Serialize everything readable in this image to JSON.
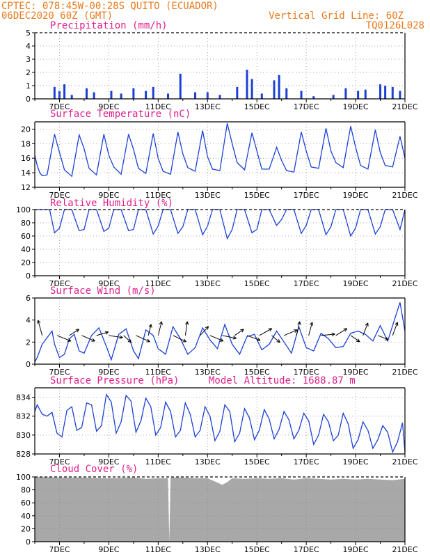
{
  "header": {
    "left_line1": "CPTEC:  078:45W-00:28S  QUITO (ECUADOR)",
    "left_line2": "06DEC2020 60Z (GMT)",
    "right_line1": "Vertical Grid Line: 60Z",
    "right_line2": "TQ0126L028"
  },
  "colors": {
    "header_text": "#e87a1e",
    "panel_title": "#e0208c",
    "series_line": "#1a3fd6",
    "precip_bar": "#1a3fd6",
    "cloud_fill": "#a8a8a8",
    "wind_arrow": "#000000",
    "grid": "#888888"
  },
  "chart_data": [
    {
      "type": "bar",
      "title": "Precipitation (mm/h)",
      "ylim": [
        0,
        5
      ],
      "yticks": [
        "0",
        "1",
        "2",
        "3",
        "4",
        "5"
      ],
      "xticks": [
        "7DEC",
        "9DEC",
        "11DEC",
        "13DEC",
        "15DEC",
        "17DEC",
        "19DEC",
        "21DEC"
      ],
      "x_days": [
        6.8,
        7.0,
        7.2,
        7.5,
        8.1,
        8.4,
        9.1,
        9.5,
        10.0,
        10.5,
        10.8,
        11.4,
        11.9,
        12.5,
        13.0,
        13.5,
        14.2,
        14.6,
        14.8,
        15.2,
        15.7,
        15.9,
        16.2,
        16.8,
        17.3,
        18.1,
        18.6,
        19.1,
        19.4,
        20.0,
        20.2,
        20.5,
        20.8
      ],
      "values": [
        0.9,
        0.6,
        1.1,
        0.3,
        0.8,
        0.5,
        0.6,
        0.4,
        0.8,
        0.6,
        0.9,
        0.4,
        1.9,
        0.5,
        0.5,
        0.3,
        0.9,
        2.2,
        1.5,
        0.4,
        1.4,
        1.8,
        0.8,
        0.6,
        0.2,
        0.3,
        0.8,
        0.6,
        0.7,
        1.1,
        1.0,
        0.9,
        0.6
      ],
      "grid": true
    },
    {
      "type": "line",
      "title": "Surface Temperature (nC)",
      "ylim": [
        12,
        21
      ],
      "yticks": [
        "12",
        "14",
        "16",
        "18",
        "20"
      ],
      "xticks": [
        "7DEC",
        "9DEC",
        "11DEC",
        "13DEC",
        "15DEC",
        "17DEC",
        "19DEC",
        "21DEC"
      ],
      "series": [
        {
          "x_days": [
            6.0,
            6.1,
            6.2,
            6.3,
            6.5,
            6.8,
            7.0,
            7.2,
            7.5,
            7.8,
            8.0,
            8.2,
            8.5,
            8.8,
            9.0,
            9.2,
            9.5,
            9.8,
            10.0,
            10.2,
            10.5,
            10.8,
            11.0,
            11.2,
            11.5,
            11.8,
            12.0,
            12.2,
            12.5,
            12.8,
            13.0,
            13.2,
            13.5,
            13.8,
            14.0,
            14.2,
            14.5,
            14.8,
            15.0,
            15.2,
            15.5,
            15.8,
            16.0,
            16.2,
            16.5,
            16.8,
            17.0,
            17.2,
            17.5,
            17.8,
            18.0,
            18.2,
            18.5,
            18.8,
            19.0,
            19.2,
            19.5,
            19.8,
            20.0,
            20.2,
            20.5,
            20.8,
            21.0
          ],
          "values": [
            16.4,
            15.0,
            14.0,
            13.6,
            13.7,
            19.3,
            16.8,
            14.4,
            13.5,
            19.2,
            17.3,
            14.6,
            13.7,
            19.3,
            16.4,
            14.8,
            13.8,
            19.3,
            17.2,
            14.6,
            13.9,
            19.4,
            16.0,
            14.2,
            13.8,
            19.6,
            16.6,
            14.7,
            14.2,
            19.8,
            16.2,
            14.5,
            14.3,
            20.8,
            18.0,
            15.4,
            14.4,
            19.5,
            17.0,
            14.5,
            14.5,
            17.5,
            15.7,
            14.3,
            14.1,
            19.6,
            17.0,
            14.8,
            14.6,
            20.1,
            17.0,
            15.4,
            14.7,
            20.4,
            17.5,
            15.0,
            14.5,
            19.9,
            16.8,
            15.0,
            14.8,
            19.0,
            16.0
          ]
        }
      ],
      "grid": true
    },
    {
      "type": "line",
      "title": "Relative Humidity (%)",
      "ylim": [
        0,
        100
      ],
      "yticks": [
        "0",
        "20",
        "40",
        "60",
        "80",
        "100"
      ],
      "xticks": [
        "7DEC",
        "9DEC",
        "11DEC",
        "13DEC",
        "15DEC",
        "17DEC",
        "19DEC",
        "21DEC"
      ],
      "series": [
        {
          "x_days": [
            6.0,
            6.2,
            6.4,
            6.6,
            6.8,
            7.0,
            7.2,
            7.5,
            7.8,
            8.0,
            8.2,
            8.5,
            8.8,
            9.0,
            9.2,
            9.5,
            9.8,
            10.0,
            10.2,
            10.5,
            10.8,
            11.0,
            11.2,
            11.5,
            11.8,
            12.0,
            12.2,
            12.5,
            12.8,
            13.0,
            13.2,
            13.5,
            13.8,
            14.0,
            14.2,
            14.5,
            14.8,
            15.0,
            15.2,
            15.5,
            15.8,
            16.0,
            16.2,
            16.5,
            16.8,
            17.0,
            17.2,
            17.5,
            17.8,
            18.0,
            18.2,
            18.5,
            18.8,
            19.0,
            19.2,
            19.5,
            19.8,
            20.0,
            20.2,
            20.5,
            20.8,
            21.0
          ],
          "values": [
            100,
            100,
            100,
            100,
            65,
            72,
            100,
            100,
            68,
            70,
            100,
            100,
            67,
            72,
            100,
            100,
            68,
            70,
            100,
            100,
            63,
            75,
            100,
            100,
            64,
            74,
            100,
            100,
            62,
            75,
            100,
            100,
            56,
            70,
            100,
            100,
            65,
            70,
            100,
            100,
            76,
            85,
            100,
            100,
            64,
            76,
            100,
            100,
            62,
            74,
            100,
            100,
            60,
            72,
            100,
            100,
            63,
            74,
            100,
            100,
            70,
            100
          ]
        }
      ],
      "grid": true
    },
    {
      "type": "line",
      "title": "Surface Wind (m/s)",
      "ylim": [
        0,
        6
      ],
      "yticks": [
        "0",
        "2",
        "4",
        "6"
      ],
      "xticks": [
        "7DEC",
        "9DEC",
        "11DEC",
        "13DEC",
        "15DEC",
        "17DEC",
        "19DEC",
        "21DEC"
      ],
      "series": [
        {
          "x_days": [
            6.0,
            6.1,
            6.3,
            6.5,
            6.7,
            6.8,
            7.0,
            7.2,
            7.4,
            7.6,
            7.8,
            8.0,
            8.3,
            8.6,
            8.9,
            9.1,
            9.4,
            9.7,
            10.0,
            10.2,
            10.5,
            10.8,
            11.0,
            11.3,
            11.6,
            11.9,
            12.2,
            12.5,
            12.8,
            13.1,
            13.4,
            13.7,
            14.0,
            14.3,
            14.6,
            14.9,
            15.2,
            15.5,
            15.8,
            16.1,
            16.4,
            16.7,
            17.0,
            17.3,
            17.6,
            17.9,
            18.2,
            18.5,
            18.8,
            19.1,
            19.4,
            19.7,
            20.0,
            20.3,
            20.6,
            20.8,
            21.0
          ],
          "values": [
            0.2,
            0.6,
            1.8,
            2.4,
            3.0,
            1.8,
            0.6,
            0.9,
            2.3,
            2.7,
            1.2,
            1.0,
            2.6,
            3.3,
            1.6,
            0.4,
            2.7,
            3.2,
            1.2,
            0.5,
            3.1,
            2.6,
            1.4,
            0.9,
            3.4,
            2.3,
            0.9,
            1.5,
            3.3,
            2.2,
            1.4,
            3.6,
            1.8,
            0.9,
            2.5,
            2.7,
            1.3,
            1.8,
            3.0,
            2.0,
            1.0,
            3.4,
            1.5,
            1.2,
            2.8,
            2.3,
            1.5,
            1.6,
            2.8,
            3.0,
            2.7,
            2.1,
            3.5,
            2.1,
            4.2,
            5.6,
            3.0
          ],
          "vectors": [
            {
              "day": 6.3,
              "u": -0.6,
              "v": 2.2
            },
            {
              "day": 6.9,
              "u": 2.0,
              "v": -0.8
            },
            {
              "day": 7.4,
              "u": 1.4,
              "v": 0.9
            },
            {
              "day": 7.9,
              "u": 1.9,
              "v": -0.8
            },
            {
              "day": 8.5,
              "u": 1.7,
              "v": 0.5
            },
            {
              "day": 9.0,
              "u": 2.0,
              "v": -0.3
            },
            {
              "day": 9.6,
              "u": 1.1,
              "v": -1.0
            },
            {
              "day": 10.1,
              "u": 2.0,
              "v": -0.9
            },
            {
              "day": 10.6,
              "u": 0.4,
              "v": 1.6
            },
            {
              "day": 11.0,
              "u": 0.5,
              "v": 2.0
            },
            {
              "day": 11.6,
              "u": 1.9,
              "v": -0.9
            },
            {
              "day": 12.1,
              "u": 0.3,
              "v": 2.0
            },
            {
              "day": 12.7,
              "u": 1.2,
              "v": 1.3
            },
            {
              "day": 13.1,
              "u": 1.9,
              "v": -0.8
            },
            {
              "day": 13.6,
              "u": 2.0,
              "v": -0.4
            },
            {
              "day": 14.1,
              "u": 1.3,
              "v": 0.9
            },
            {
              "day": 14.6,
              "u": 1.9,
              "v": -0.7
            },
            {
              "day": 15.1,
              "u": 1.8,
              "v": 1.0
            },
            {
              "day": 15.6,
              "u": 1.2,
              "v": -1.0
            },
            {
              "day": 16.1,
              "u": 1.9,
              "v": 0.8
            },
            {
              "day": 16.6,
              "u": 0.5,
              "v": 2.0
            },
            {
              "day": 17.1,
              "u": 0.5,
              "v": 1.9
            },
            {
              "day": 17.6,
              "u": 2.0,
              "v": 0.2
            },
            {
              "day": 18.2,
              "u": 1.6,
              "v": 1.0
            },
            {
              "day": 18.8,
              "u": 1.3,
              "v": -0.9
            },
            {
              "day": 19.3,
              "u": 0.7,
              "v": 1.8
            },
            {
              "day": 19.9,
              "u": 1.5,
              "v": -0.6
            },
            {
              "day": 20.5,
              "u": 0.7,
              "v": 1.9
            }
          ]
        }
      ],
      "grid": true
    },
    {
      "type": "line",
      "title": "Surface Pressure (hPa)",
      "annotation": "Model Altitude: 1688.87 m",
      "ylim": [
        828,
        835
      ],
      "yticks": [
        "828",
        "830",
        "832",
        "834"
      ],
      "xticks": [
        "7DEC",
        "9DEC",
        "11DEC",
        "13DEC",
        "15DEC",
        "17DEC",
        "19DEC",
        "21DEC"
      ],
      "series": [
        {
          "x_days": [
            6.0,
            6.1,
            6.3,
            6.5,
            6.7,
            6.9,
            7.1,
            7.3,
            7.5,
            7.7,
            7.9,
            8.1,
            8.3,
            8.5,
            8.7,
            8.9,
            9.1,
            9.3,
            9.5,
            9.7,
            9.9,
            10.1,
            10.3,
            10.5,
            10.7,
            10.9,
            11.1,
            11.3,
            11.5,
            11.7,
            11.9,
            12.1,
            12.3,
            12.5,
            12.7,
            12.9,
            13.1,
            13.3,
            13.5,
            13.7,
            13.9,
            14.1,
            14.3,
            14.5,
            14.7,
            14.9,
            15.1,
            15.3,
            15.5,
            15.7,
            15.9,
            16.1,
            16.3,
            16.5,
            16.7,
            16.9,
            17.1,
            17.3,
            17.5,
            17.7,
            17.9,
            18.1,
            18.3,
            18.5,
            18.7,
            18.9,
            19.1,
            19.3,
            19.5,
            19.7,
            19.9,
            20.1,
            20.3,
            20.5,
            20.7,
            20.9,
            21.0
          ],
          "values": [
            832.5,
            833.2,
            832.2,
            832.0,
            832.4,
            830.2,
            829.8,
            832.6,
            833.0,
            830.5,
            830.8,
            833.4,
            833.2,
            830.4,
            831.0,
            834.3,
            833.5,
            830.2,
            831.4,
            834.2,
            833.6,
            830.3,
            831.5,
            833.9,
            833.0,
            830.0,
            830.8,
            833.5,
            832.5,
            829.8,
            830.5,
            833.4,
            832.2,
            829.8,
            830.5,
            833.0,
            832.0,
            829.4,
            830.4,
            833.2,
            832.5,
            829.3,
            830.2,
            832.8,
            831.8,
            829.5,
            830.5,
            832.7,
            831.7,
            829.6,
            830.6,
            832.5,
            831.6,
            829.6,
            830.5,
            832.3,
            831.5,
            829.0,
            830.0,
            832.2,
            831.4,
            829.4,
            830.0,
            832.3,
            831.2,
            828.6,
            829.5,
            831.4,
            830.5,
            828.6,
            829.5,
            831.0,
            830.3,
            828.2,
            829.3,
            831.3,
            828.2
          ]
        }
      ],
      "grid": true
    },
    {
      "type": "area",
      "title": "Cloud Cover (%)",
      "ylim": [
        0,
        100
      ],
      "yticks": [
        "0",
        "20",
        "40",
        "60",
        "80",
        "100"
      ],
      "xticks": [
        "7DEC",
        "9DEC",
        "11DEC",
        "13DEC",
        "15DEC",
        "17DEC",
        "19DEC",
        "21DEC"
      ],
      "series": [
        {
          "x_days": [
            6.0,
            7.0,
            8.0,
            9.0,
            10.0,
            10.5,
            11.0,
            11.4,
            11.45,
            11.5,
            12.0,
            12.5,
            13.0,
            13.6,
            13.8,
            14.0,
            14.5,
            15.0,
            15.5,
            16.0,
            16.5,
            17.0,
            17.5,
            18.0,
            18.5,
            19.0,
            19.5,
            20.0,
            20.5,
            21.0
          ],
          "values": [
            100,
            99,
            99,
            98,
            99,
            97,
            98,
            98,
            0,
            99,
            99,
            98,
            98,
            88,
            92,
            98,
            97,
            98,
            97,
            98,
            96,
            98,
            97,
            96,
            97,
            96,
            97,
            96,
            95,
            97
          ]
        }
      ],
      "grid": true
    }
  ]
}
